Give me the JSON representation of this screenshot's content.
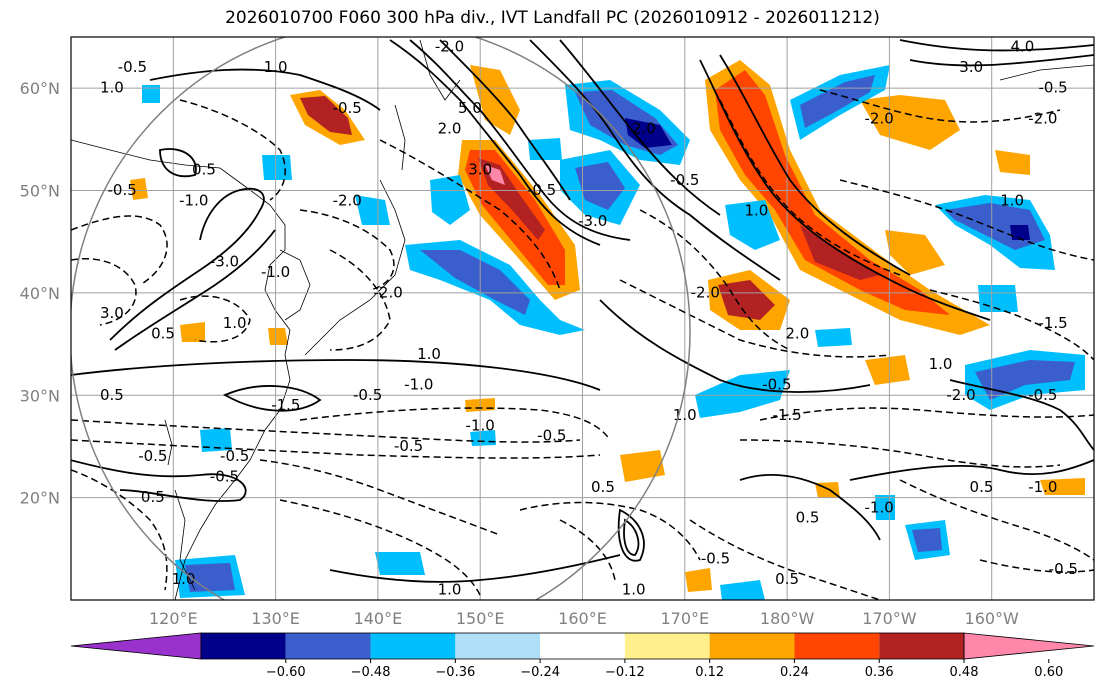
{
  "title": "2026010700 F060 300 hPa div., IVT Landfall PC (2026010912 - 2026011212)",
  "map": {
    "lon_range": [
      110,
      210
    ],
    "lat_range": [
      10,
      65
    ],
    "lat_ticks": [
      {
        "value": 20,
        "label": "20°N"
      },
      {
        "value": 30,
        "label": "30°N"
      },
      {
        "value": 40,
        "label": "40°N"
      },
      {
        "value": 50,
        "label": "50°N"
      },
      {
        "value": 60,
        "label": "60°N"
      }
    ],
    "lon_ticks": [
      {
        "value": 120,
        "label": "120°E"
      },
      {
        "value": 130,
        "label": "130°E"
      },
      {
        "value": 140,
        "label": "140°E"
      },
      {
        "value": 150,
        "label": "150°E"
      },
      {
        "value": 160,
        "label": "160°E"
      },
      {
        "value": 170,
        "label": "170°E"
      },
      {
        "value": 180,
        "label": "180°W"
      },
      {
        "value": 190,
        "label": "170°W"
      },
      {
        "value": 200,
        "label": "160°W"
      }
    ],
    "grid_color": "#a0a0a0",
    "contour_labels": [
      {
        "text": "-0.5",
        "lon": 116,
        "lat": 62
      },
      {
        "text": "1.0",
        "lon": 114,
        "lat": 60
      },
      {
        "text": "1.0",
        "lon": 130,
        "lat": 62
      },
      {
        "text": "-0.5",
        "lon": 137,
        "lat": 58
      },
      {
        "text": "-2.0",
        "lon": 147,
        "lat": 64
      },
      {
        "text": "5.0",
        "lon": 149,
        "lat": 58
      },
      {
        "text": "3.0",
        "lon": 150,
        "lat": 52
      },
      {
        "text": "2.0",
        "lon": 147,
        "lat": 56
      },
      {
        "text": "2.0",
        "lon": 166,
        "lat": 56
      },
      {
        "text": "-0.5",
        "lon": 170,
        "lat": 51
      },
      {
        "text": "1.0",
        "lon": 177,
        "lat": 48
      },
      {
        "text": "-3.0",
        "lon": 161,
        "lat": 47
      },
      {
        "text": "-0.5",
        "lon": 156,
        "lat": 50
      },
      {
        "text": "-2.0",
        "lon": 172,
        "lat": 40
      },
      {
        "text": "2.0",
        "lon": 181,
        "lat": 36
      },
      {
        "text": "-2.0",
        "lon": 189,
        "lat": 57
      },
      {
        "text": "3.0",
        "lon": 198,
        "lat": 62
      },
      {
        "text": "4.0",
        "lon": 203,
        "lat": 64
      },
      {
        "text": "-0.5",
        "lon": 206,
        "lat": 60
      },
      {
        "text": "-2.0",
        "lon": 205,
        "lat": 57
      },
      {
        "text": "1.0",
        "lon": 202,
        "lat": 49
      },
      {
        "text": "-1.5",
        "lon": 206,
        "lat": 37
      },
      {
        "text": "1.0",
        "lon": 195,
        "lat": 33
      },
      {
        "text": "-2.0",
        "lon": 197,
        "lat": 30
      },
      {
        "text": "-0.5",
        "lon": 205,
        "lat": 30
      },
      {
        "text": "0.5",
        "lon": 199,
        "lat": 21
      },
      {
        "text": "-1.0",
        "lon": 205,
        "lat": 21
      },
      {
        "text": "-0.5",
        "lon": 207,
        "lat": 13
      },
      {
        "text": "-1.0",
        "lon": 189,
        "lat": 19
      },
      {
        "text": "0.5",
        "lon": 182,
        "lat": 18
      },
      {
        "text": "-0.5",
        "lon": 173,
        "lat": 14
      },
      {
        "text": "1.0",
        "lon": 165,
        "lat": 11
      },
      {
        "text": "0.5",
        "lon": 180,
        "lat": 12
      },
      {
        "text": "1.0",
        "lon": 170,
        "lat": 28
      },
      {
        "text": "-1.5",
        "lon": 180,
        "lat": 28
      },
      {
        "text": "-0.5",
        "lon": 179,
        "lat": 31
      },
      {
        "text": "-0.5",
        "lon": 157,
        "lat": 26
      },
      {
        "text": "0.5",
        "lon": 162,
        "lat": 21
      },
      {
        "text": "-1.0",
        "lon": 150,
        "lat": 27
      },
      {
        "text": "-0.5",
        "lon": 143,
        "lat": 25
      },
      {
        "text": "-0.5",
        "lon": 139,
        "lat": 30
      },
      {
        "text": "-1.0",
        "lon": 144,
        "lat": 31
      },
      {
        "text": "1.0",
        "lon": 145,
        "lat": 34
      },
      {
        "text": "-1.5",
        "lon": 131,
        "lat": 29
      },
      {
        "text": "-0.5",
        "lon": 126,
        "lat": 24
      },
      {
        "text": "-0.5",
        "lon": 125,
        "lat": 22
      },
      {
        "text": "0.5",
        "lon": 118,
        "lat": 20
      },
      {
        "text": "-0.5",
        "lon": 118,
        "lat": 24
      },
      {
        "text": "0.5",
        "lon": 114,
        "lat": 30
      },
      {
        "text": "-1.0",
        "lon": 130,
        "lat": 42
      },
      {
        "text": "-3.0",
        "lon": 125,
        "lat": 43
      },
      {
        "text": "0.5",
        "lon": 123,
        "lat": 52
      },
      {
        "text": "-0.5",
        "lon": 115,
        "lat": 50
      },
      {
        "text": "-1.0",
        "lon": 122,
        "lat": 49
      },
      {
        "text": "3.0",
        "lon": 114,
        "lat": 38
      },
      {
        "text": "-2.0",
        "lon": 141,
        "lat": 40
      },
      {
        "text": "1.0",
        "lon": 126,
        "lat": 37
      },
      {
        "text": "0.5",
        "lon": 119,
        "lat": 36
      },
      {
        "text": "-2.0",
        "lon": 137,
        "lat": 49
      },
      {
        "text": "1.0",
        "lon": 121,
        "lat": 12
      },
      {
        "text": "1.0",
        "lon": 147,
        "lat": 11
      }
    ]
  },
  "colorbar": {
    "ticks": [
      "−0.60",
      "−0.48",
      "−0.36",
      "−0.24",
      "−0.12",
      "0.12",
      "0.24",
      "0.36",
      "0.48",
      "0.60"
    ],
    "colors": [
      "#9932cc",
      "#00008b",
      "#3a5fcd",
      "#00bfff",
      "#b0e0f8",
      "#ffffff",
      "#fff08c",
      "#ffa500",
      "#ff4500",
      "#b22222",
      "#ff88aa"
    ]
  }
}
